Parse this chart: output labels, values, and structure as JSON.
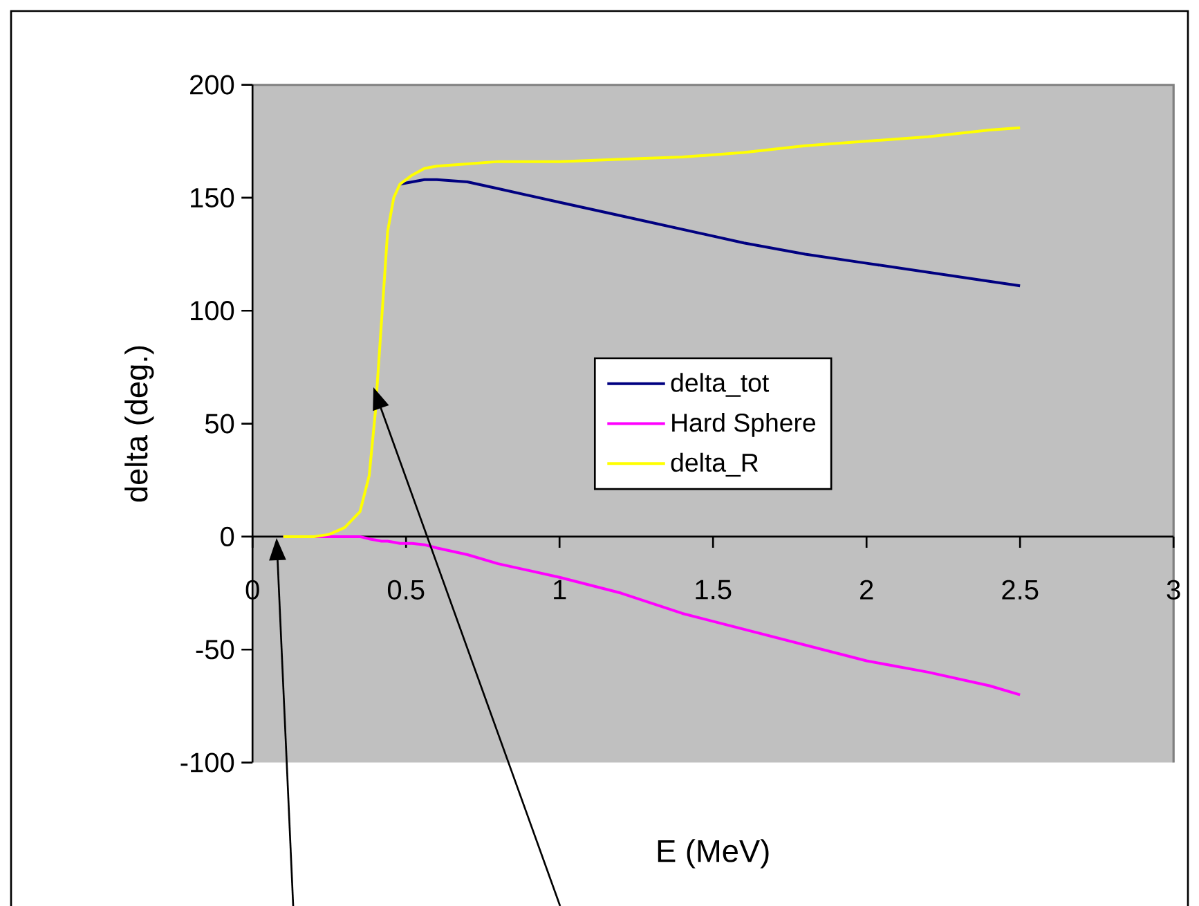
{
  "chart_data": {
    "type": "line",
    "xlabel": "E (MeV)",
    "ylabel": "delta (deg.)",
    "x": [
      0.1,
      0.15,
      0.2,
      0.25,
      0.3,
      0.35,
      0.38,
      0.4,
      0.42,
      0.44,
      0.46,
      0.48,
      0.52,
      0.56,
      0.6,
      0.7,
      0.8,
      1.0,
      1.2,
      1.4,
      1.6,
      1.8,
      2.0,
      2.2,
      2.4,
      2.5
    ],
    "series": [
      {
        "name": "delta_tot",
        "color": "#000080",
        "values": [
          null,
          null,
          null,
          null,
          null,
          null,
          null,
          null,
          null,
          null,
          null,
          156,
          157,
          158,
          158,
          157,
          154,
          148,
          142,
          136,
          130,
          125,
          121,
          117,
          113,
          111
        ]
      },
      {
        "name": "Hard Sphere",
        "color": "#ff00ff",
        "values": [
          0,
          0,
          0,
          0,
          0,
          0,
          -1,
          -1.5,
          -2,
          -2,
          -2.5,
          -3,
          -3,
          -3.6,
          -5,
          -8,
          -12,
          -18,
          -25,
          -34,
          -41,
          -48,
          -55,
          -60,
          -66,
          -70
        ]
      },
      {
        "name": "delta_R",
        "color": "#ffff00",
        "values": [
          0,
          0,
          0,
          1,
          4,
          11,
          27,
          55,
          95,
          135,
          150,
          156,
          160,
          163,
          164,
          165,
          166,
          166,
          167,
          168,
          170,
          173,
          175,
          177,
          180,
          181
        ]
      }
    ],
    "xlim": [
      0,
      3
    ],
    "xticks": [
      0,
      0.5,
      1,
      1.5,
      2,
      2.5,
      3
    ],
    "ylim": [
      -100,
      200
    ],
    "yticks": [
      -100,
      -50,
      0,
      50,
      100,
      150,
      200
    ],
    "grid": false,
    "legend": "center",
    "marker": "none",
    "line_style": "solid"
  }
}
